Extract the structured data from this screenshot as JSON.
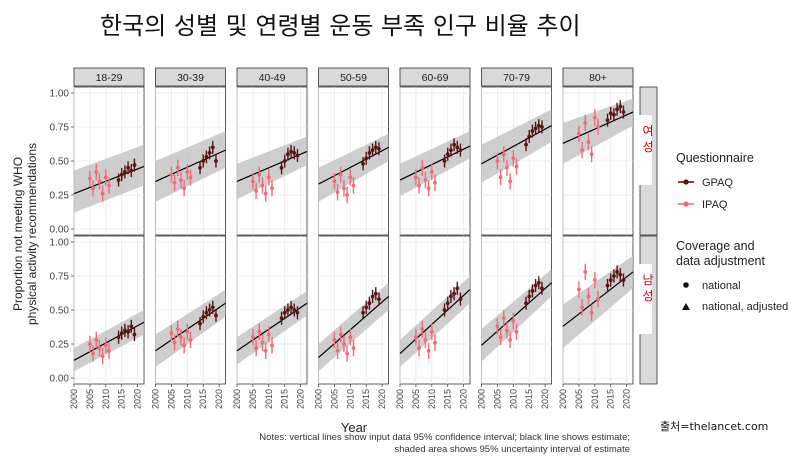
{
  "title": "한국의 성별 및 연령별 운동 부족 인구 비율 추이",
  "source": "출처=thelancet.com",
  "notes": [
    "Notes: vertical lines show input data 95% confidence interval; black line shows estimate;",
    "shaded area shows 95% uncertainty interval of estimate"
  ],
  "colors": {
    "gpaq": "#5a1414",
    "ipaq": "#f06a78",
    "estimate": "#000000",
    "band": "#bdbdbd",
    "strip": "#d9d9d9",
    "sex_label": "#cc0000"
  },
  "chart_data": {
    "type": "scatter",
    "ylabel": "Proportion not meeting WHO physical activity recommendations",
    "ylabel_lines": [
      "Proportion not meeting WHO",
      "physical activity recommendations"
    ],
    "xlabel": "Year",
    "xlim": [
      2000,
      2022
    ],
    "ylim": [
      0,
      1
    ],
    "xticks": [
      "2000",
      "2005",
      "2010",
      "2015",
      "2020"
    ],
    "yticks": [
      "0.00",
      "0.25",
      "0.50",
      "0.75",
      "1.00"
    ],
    "grid": true,
    "age_groups": [
      "18-29",
      "30-39",
      "40-49",
      "50-59",
      "60-69",
      "70-79",
      "80+"
    ],
    "rows": [
      {
        "sex": "여성",
        "panels": [
          {
            "estimate": [
              0.26,
              0.46
            ],
            "band": [
              0.12,
              0.43,
              0.32,
              0.62
            ],
            "ipaq": [
              0.37,
              0.3,
              0.42,
              0.35,
              0.26,
              0.38,
              0.32
            ],
            "gpaq": [
              0.36,
              0.4,
              0.42,
              0.45,
              0.43,
              0.47
            ]
          },
          {
            "estimate": [
              0.35,
              0.58
            ],
            "band": [
              0.2,
              0.5,
              0.45,
              0.72
            ],
            "ipaq": [
              0.4,
              0.34,
              0.45,
              0.36,
              0.3,
              0.42,
              0.38
            ],
            "gpaq": [
              0.45,
              0.5,
              0.53,
              0.56,
              0.6,
              0.5
            ]
          },
          {
            "estimate": [
              0.35,
              0.57
            ],
            "band": [
              0.22,
              0.48,
              0.47,
              0.68
            ],
            "ipaq": [
              0.35,
              0.28,
              0.4,
              0.32,
              0.26,
              0.38,
              0.3
            ],
            "gpaq": [
              0.45,
              0.5,
              0.55,
              0.57,
              0.56,
              0.54
            ]
          },
          {
            "estimate": [
              0.33,
              0.6
            ],
            "band": [
              0.2,
              0.45,
              0.5,
              0.7
            ],
            "ipaq": [
              0.35,
              0.27,
              0.4,
              0.3,
              0.25,
              0.38,
              0.32
            ],
            "gpaq": [
              0.48,
              0.52,
              0.56,
              0.58,
              0.6,
              0.59
            ]
          },
          {
            "estimate": [
              0.36,
              0.61
            ],
            "band": [
              0.24,
              0.48,
              0.52,
              0.72
            ],
            "ipaq": [
              0.38,
              0.32,
              0.45,
              0.36,
              0.3,
              0.42,
              0.34
            ],
            "gpaq": [
              0.5,
              0.55,
              0.58,
              0.62,
              0.6,
              0.58
            ]
          },
          {
            "estimate": [
              0.48,
              0.76
            ],
            "band": [
              0.34,
              0.62,
              0.64,
              0.88
            ],
            "ipaq": [
              0.5,
              0.38,
              0.55,
              0.45,
              0.35,
              0.52,
              0.46
            ],
            "gpaq": [
              0.62,
              0.68,
              0.72,
              0.74,
              0.76,
              0.75
            ]
          },
          {
            "estimate": [
              0.63,
              0.86
            ],
            "band": [
              0.48,
              0.78,
              0.76,
              0.96
            ],
            "ipaq": [
              0.7,
              0.58,
              0.78,
              0.64,
              0.55,
              0.82,
              0.75
            ],
            "gpaq": [
              0.8,
              0.85,
              0.84,
              0.88,
              0.9,
              0.86
            ]
          }
        ]
      },
      {
        "sex": "남성",
        "panels": [
          {
            "estimate": [
              0.13,
              0.41
            ],
            "band": [
              0.05,
              0.22,
              0.32,
              0.5
            ],
            "ipaq": [
              0.25,
              0.18,
              0.28,
              0.22,
              0.16,
              0.24,
              0.2
            ],
            "gpaq": [
              0.3,
              0.33,
              0.35,
              0.34,
              0.38,
              0.32
            ]
          },
          {
            "estimate": [
              0.2,
              0.55
            ],
            "band": [
              0.08,
              0.32,
              0.45,
              0.65
            ],
            "ipaq": [
              0.33,
              0.26,
              0.36,
              0.3,
              0.24,
              0.34,
              0.28
            ],
            "gpaq": [
              0.4,
              0.45,
              0.48,
              0.5,
              0.52,
              0.46
            ]
          },
          {
            "estimate": [
              0.2,
              0.55
            ],
            "band": [
              0.1,
              0.3,
              0.46,
              0.64
            ],
            "ipaq": [
              0.3,
              0.22,
              0.34,
              0.26,
              0.2,
              0.32,
              0.24
            ],
            "gpaq": [
              0.44,
              0.48,
              0.5,
              0.52,
              0.5,
              0.48
            ]
          },
          {
            "estimate": [
              0.15,
              0.6
            ],
            "band": [
              0.05,
              0.25,
              0.5,
              0.7
            ],
            "ipaq": [
              0.28,
              0.2,
              0.32,
              0.25,
              0.18,
              0.3,
              0.22
            ],
            "gpaq": [
              0.48,
              0.52,
              0.55,
              0.6,
              0.62,
              0.58
            ]
          },
          {
            "estimate": [
              0.18,
              0.65
            ],
            "band": [
              0.08,
              0.28,
              0.55,
              0.75
            ],
            "ipaq": [
              0.3,
              0.22,
              0.36,
              0.28,
              0.2,
              0.34,
              0.26
            ],
            "gpaq": [
              0.5,
              0.55,
              0.6,
              0.62,
              0.66,
              0.58
            ]
          },
          {
            "estimate": [
              0.24,
              0.7
            ],
            "band": [
              0.12,
              0.36,
              0.6,
              0.8
            ],
            "ipaq": [
              0.38,
              0.3,
              0.44,
              0.35,
              0.28,
              0.42,
              0.34
            ],
            "gpaq": [
              0.55,
              0.6,
              0.64,
              0.68,
              0.7,
              0.66
            ]
          },
          {
            "estimate": [
              0.38,
              0.78
            ],
            "band": [
              0.22,
              0.54,
              0.66,
              0.9
            ],
            "ipaq": [
              0.65,
              0.52,
              0.78,
              0.6,
              0.48,
              0.72,
              0.58
            ],
            "gpaq": [
              0.68,
              0.72,
              0.75,
              0.78,
              0.76,
              0.72
            ]
          }
        ]
      }
    ],
    "ipaq_years": [
      2005,
      2006,
      2007,
      2008,
      2009,
      2010,
      2011
    ],
    "gpaq_years": [
      2014,
      2015,
      2016,
      2017,
      2018,
      2019
    ],
    "ci_halfwidth": 0.06,
    "legend": {
      "placement": "right",
      "questionnaire_title": "Questionnaire",
      "questionnaire": [
        "GPAQ",
        "IPAQ"
      ],
      "coverage_title_lines": [
        "Coverage and",
        "data adjustment"
      ],
      "coverage": [
        "national",
        "national, adjusted"
      ]
    }
  }
}
